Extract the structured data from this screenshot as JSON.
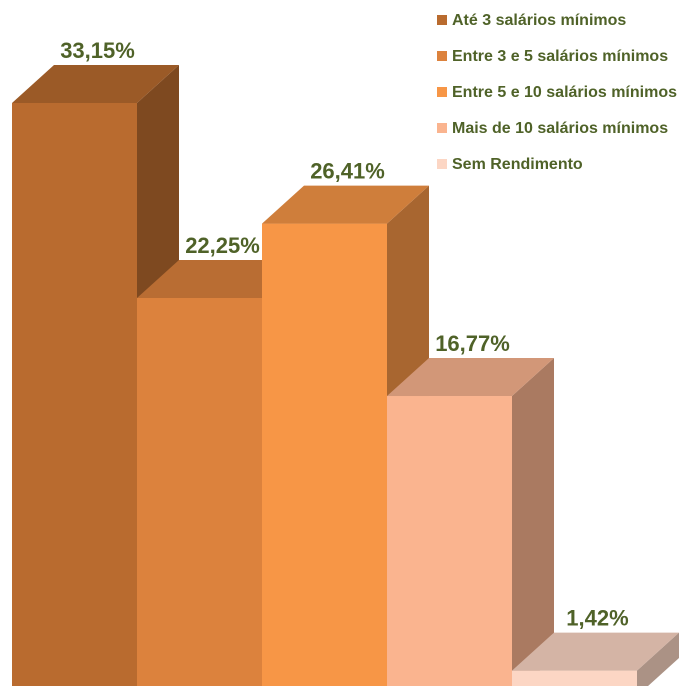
{
  "chart_data": {
    "type": "bar3d",
    "categories": [
      "Até 3 salários mínimos",
      "Entre 3 e 5 salários mínimos",
      "Entre 5 e 10 salários mínimos",
      "Mais de 10 salários mínimos",
      "Sem Rendimento"
    ],
    "values": [
      33.15,
      22.25,
      26.41,
      16.77,
      1.42
    ],
    "value_labels": [
      "33,15%",
      "22,25%",
      "26,41%",
      "16,77%",
      "1,42%"
    ],
    "colors": [
      "#b96b2f",
      "#dc823d",
      "#f79646",
      "#fab48f",
      "#fcd6c4"
    ],
    "legend": "top-right"
  }
}
